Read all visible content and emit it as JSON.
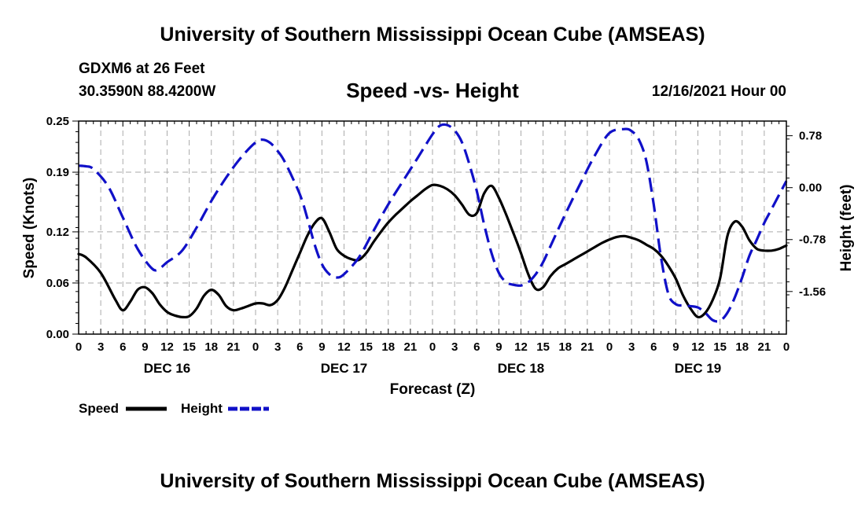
{
  "header": {
    "title": "University of Southern Mississippi Ocean Cube (AMSEAS)",
    "station": "GDXM6 at 26 Feet",
    "coordinates": "30.3590N  88.4200W",
    "run_time": "12/16/2021 Hour 00"
  },
  "footer": {
    "title": "University of Southern Mississippi Ocean Cube (AMSEAS)"
  },
  "chart_data": {
    "type": "line",
    "title": "Speed -vs- Height",
    "xlabel": "Forecast (Z)",
    "ylabel_left": "Speed (Knots)",
    "ylabel_right": "Height (feet)",
    "x_range_hours": [
      0,
      96
    ],
    "x_tick_labels": [
      "0",
      "3",
      "6",
      "9",
      "12",
      "15",
      "18",
      "21",
      "0",
      "3",
      "6",
      "9",
      "12",
      "15",
      "18",
      "21",
      "0",
      "3",
      "6",
      "9",
      "12",
      "15",
      "18",
      "21",
      "0",
      "3",
      "6",
      "9",
      "12",
      "15",
      "18",
      "21",
      "0"
    ],
    "day_labels": [
      {
        "hour": 12,
        "label": "DEC 16"
      },
      {
        "hour": 36,
        "label": "DEC 17"
      },
      {
        "hour": 60,
        "label": "DEC 18"
      },
      {
        "hour": 84,
        "label": "DEC 19"
      }
    ],
    "y_left": {
      "range": [
        0,
        0.25
      ],
      "ticks": [
        0,
        0.06,
        0.12,
        0.19,
        0.25
      ],
      "tick_labels": [
        "0.00",
        "0.06",
        "0.12",
        "0.19",
        "0.25"
      ]
    },
    "y_right": {
      "range": [
        -2.2,
        1.0
      ],
      "ticks": [
        0.78,
        0.0,
        -0.78,
        -1.56
      ],
      "tick_labels": [
        "0.78",
        "0.00",
        "-0.78",
        "-1.56"
      ]
    },
    "grid": true,
    "legend": {
      "placement": "bottom-left",
      "items": [
        {
          "label": "Speed",
          "color": "#000000",
          "style": "solid"
        },
        {
          "label": "Height",
          "color": "#1010c8",
          "style": "dashed"
        }
      ]
    },
    "series": [
      {
        "name": "Speed",
        "axis": "left",
        "color": "#000000",
        "style": "solid",
        "x": [
          0,
          1,
          3,
          5,
          6,
          7,
          8,
          9,
          10,
          11,
          12,
          13,
          14,
          15,
          16,
          17,
          18,
          19,
          20,
          21,
          22,
          23,
          24,
          25,
          26,
          27,
          28,
          29,
          30,
          31,
          32,
          33,
          34,
          35,
          36,
          37,
          38,
          39,
          40,
          41,
          42,
          43,
          44,
          45,
          46,
          47,
          48,
          49,
          50,
          51,
          52,
          53,
          54,
          55,
          56,
          57,
          58,
          59,
          60,
          61,
          62,
          63,
          64,
          65,
          66,
          67,
          68,
          69,
          70,
          71,
          72,
          73,
          74,
          75,
          76,
          77,
          78,
          79,
          80,
          81,
          82,
          83,
          84,
          85,
          86,
          87,
          88,
          89,
          90,
          91,
          92,
          93,
          94,
          95,
          96
        ],
        "y": [
          0.094,
          0.09,
          0.072,
          0.04,
          0.028,
          0.038,
          0.052,
          0.055,
          0.048,
          0.035,
          0.026,
          0.022,
          0.02,
          0.021,
          0.03,
          0.045,
          0.052,
          0.046,
          0.033,
          0.028,
          0.03,
          0.033,
          0.036,
          0.036,
          0.034,
          0.04,
          0.055,
          0.075,
          0.095,
          0.115,
          0.13,
          0.136,
          0.12,
          0.1,
          0.092,
          0.088,
          0.087,
          0.095,
          0.108,
          0.12,
          0.131,
          0.14,
          0.148,
          0.156,
          0.163,
          0.17,
          0.175,
          0.174,
          0.17,
          0.163,
          0.152,
          0.14,
          0.142,
          0.165,
          0.174,
          0.16,
          0.14,
          0.118,
          0.095,
          0.07,
          0.053,
          0.055,
          0.068,
          0.077,
          0.082,
          0.087,
          0.092,
          0.097,
          0.102,
          0.107,
          0.111,
          0.114,
          0.115,
          0.113,
          0.11,
          0.105,
          0.1,
          0.092,
          0.08,
          0.065,
          0.045,
          0.03,
          0.02,
          0.025,
          0.04,
          0.065,
          0.115,
          0.132,
          0.126,
          0.11,
          0.1,
          0.098,
          0.098,
          0.1,
          0.104
        ]
      },
      {
        "name": "Height",
        "axis": "right",
        "color": "#1010c8",
        "style": "dashed",
        "x": [
          0,
          1,
          2,
          4,
          6,
          8,
          10,
          11,
          12,
          14,
          16,
          18,
          20,
          22,
          24,
          25,
          26,
          27,
          28,
          30,
          31,
          32,
          33,
          34,
          35,
          36,
          38,
          40,
          42,
          44,
          46,
          48,
          49,
          50,
          51,
          52,
          53,
          54,
          55,
          56,
          57,
          58,
          59,
          60,
          61,
          62,
          63,
          64,
          66,
          68,
          70,
          72,
          74,
          75,
          76,
          77,
          78,
          79,
          80,
          81,
          82,
          83,
          84,
          85,
          86,
          87,
          88,
          89,
          90,
          91,
          92,
          93,
          94,
          96
        ],
        "y": [
          0.33,
          0.32,
          0.28,
          0.02,
          -0.45,
          -0.92,
          -1.22,
          -1.21,
          -1.12,
          -0.95,
          -0.6,
          -0.2,
          0.15,
          0.45,
          0.68,
          0.72,
          0.67,
          0.55,
          0.38,
          -0.1,
          -0.45,
          -0.85,
          -1.15,
          -1.3,
          -1.35,
          -1.3,
          -1.05,
          -0.65,
          -0.25,
          0.1,
          0.45,
          0.8,
          0.93,
          0.94,
          0.86,
          0.68,
          0.35,
          -0.05,
          -0.55,
          -0.98,
          -1.28,
          -1.42,
          -1.46,
          -1.47,
          -1.42,
          -1.3,
          -1.12,
          -0.88,
          -0.4,
          0.05,
          0.48,
          0.82,
          0.88,
          0.85,
          0.72,
          0.4,
          -0.25,
          -1.05,
          -1.6,
          -1.75,
          -1.77,
          -1.78,
          -1.8,
          -1.88,
          -1.99,
          -2.0,
          -1.88,
          -1.65,
          -1.35,
          -1.02,
          -0.78,
          -0.53,
          -0.32,
          0.1
        ]
      }
    ]
  }
}
